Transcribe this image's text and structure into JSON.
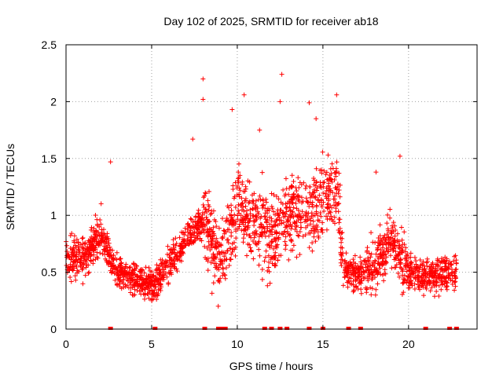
{
  "chart_data": {
    "type": "scatter",
    "title": "Day 102 of 2025, SRMTID for receiver ab18",
    "xlabel": "GPS time / hours",
    "ylabel": "SRMTID / TECUs",
    "xlim": [
      0,
      24
    ],
    "ylim": [
      0,
      2.5
    ],
    "x_ticks": [
      0,
      5,
      10,
      15,
      20
    ],
    "y_ticks": [
      0,
      0.5,
      1,
      1.5,
      2,
      2.5
    ],
    "x_tick_labels": [
      "0",
      "5",
      "10",
      "15",
      "20"
    ],
    "y_tick_labels": [
      "0",
      "0.5",
      "1",
      "1.5",
      "2",
      "2.5"
    ],
    "grid": true,
    "marker": "+",
    "series_color": "#ff0000",
    "trend": [
      [
        0,
        0.65
      ],
      [
        1,
        0.6
      ],
      [
        2,
        0.85
      ],
      [
        3,
        0.5
      ],
      [
        4,
        0.45
      ],
      [
        5,
        0.38
      ],
      [
        6,
        0.55
      ],
      [
        7,
        0.8
      ],
      [
        8,
        0.95
      ],
      [
        9,
        0.6
      ],
      [
        10,
        1.1
      ],
      [
        11,
        0.95
      ],
      [
        12,
        0.8
      ],
      [
        13,
        1.05
      ],
      [
        14,
        1.0
      ],
      [
        15,
        1.15
      ],
      [
        15.8,
        1.25
      ],
      [
        16.2,
        0.55
      ],
      [
        17,
        0.45
      ],
      [
        18,
        0.55
      ],
      [
        19,
        0.8
      ],
      [
        20,
        0.5
      ],
      [
        21,
        0.45
      ],
      [
        22,
        0.5
      ],
      [
        22.7,
        0.5
      ]
    ],
    "extreme_points": [
      [
        8.0,
        2.2
      ],
      [
        8.0,
        2.02
      ],
      [
        10.4,
        2.06
      ],
      [
        12.6,
        2.24
      ],
      [
        12.5,
        2.0
      ],
      [
        14.2,
        1.99
      ],
      [
        14.6,
        1.85
      ],
      [
        15.8,
        2.06
      ],
      [
        19.5,
        1.52
      ],
      [
        18.1,
        1.38
      ],
      [
        2.6,
        1.47
      ],
      [
        9.7,
        1.93
      ],
      [
        11.3,
        1.75
      ],
      [
        7.4,
        1.67
      ]
    ],
    "zero_points": [
      2.6,
      5.2,
      8.1,
      8.9,
      9.1,
      9.3,
      11.6,
      12.0,
      12.5,
      12.9,
      14.2,
      15.0,
      16.5,
      17.2,
      21.0,
      22.4,
      22.8
    ]
  }
}
